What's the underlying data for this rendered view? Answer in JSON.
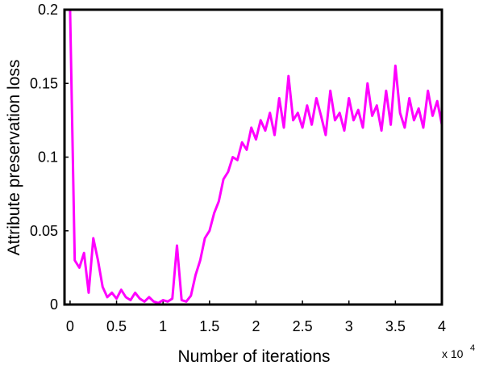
{
  "chart_data": {
    "type": "line",
    "x_label": "Number of iterations",
    "y_label": "Attribute preservation loss",
    "x_scale_label": "x 10",
    "x_scale_exponent": "4",
    "xlim": [
      -600,
      40000
    ],
    "ylim": [
      0,
      0.2
    ],
    "xticks": [
      {
        "value": 0,
        "label": "0"
      },
      {
        "value": 5000,
        "label": "0.5"
      },
      {
        "value": 10000,
        "label": "1"
      },
      {
        "value": 15000,
        "label": "1.5"
      },
      {
        "value": 20000,
        "label": "2"
      },
      {
        "value": 25000,
        "label": "2.5"
      },
      {
        "value": 30000,
        "label": "3"
      },
      {
        "value": 35000,
        "label": "3.5"
      },
      {
        "value": 40000,
        "label": "4"
      }
    ],
    "yticks": [
      0,
      0.05,
      0.1,
      0.15,
      0.2
    ],
    "x": [
      0,
      500,
      1000,
      1500,
      2000,
      2500,
      3000,
      3500,
      4000,
      4500,
      5000,
      5500,
      6000,
      6500,
      7000,
      7500,
      8000,
      8500,
      9000,
      9500,
      10000,
      10500,
      11000,
      11500,
      12000,
      12500,
      13000,
      13500,
      14000,
      14500,
      15000,
      15500,
      16000,
      16500,
      17000,
      17500,
      18000,
      18500,
      19000,
      19500,
      20000,
      20500,
      21000,
      21500,
      22000,
      22500,
      23000,
      23500,
      24000,
      24500,
      25000,
      25500,
      26000,
      26500,
      27000,
      27500,
      28000,
      28500,
      29000,
      29500,
      30000,
      30500,
      31000,
      31500,
      32000,
      32500,
      33000,
      33500,
      34000,
      34500,
      35000,
      35500,
      36000,
      36500,
      37000,
      37500,
      38000,
      38500,
      39000,
      39500,
      40000
    ],
    "series": [
      {
        "color": "#ff00ff",
        "values": [
          0.2,
          0.03,
          0.025,
          0.035,
          0.008,
          0.045,
          0.03,
          0.012,
          0.005,
          0.008,
          0.004,
          0.01,
          0.005,
          0.003,
          0.008,
          0.004,
          0.002,
          0.005,
          0.002,
          0.001,
          0.003,
          0.002,
          0.004,
          0.04,
          0.003,
          0.002,
          0.006,
          0.02,
          0.03,
          0.045,
          0.05,
          0.062,
          0.07,
          0.085,
          0.09,
          0.1,
          0.098,
          0.11,
          0.105,
          0.12,
          0.112,
          0.125,
          0.118,
          0.13,
          0.115,
          0.14,
          0.12,
          0.155,
          0.125,
          0.13,
          0.12,
          0.135,
          0.122,
          0.14,
          0.128,
          0.115,
          0.145,
          0.125,
          0.13,
          0.118,
          0.14,
          0.125,
          0.132,
          0.12,
          0.15,
          0.128,
          0.135,
          0.118,
          0.145,
          0.122,
          0.162,
          0.13,
          0.12,
          0.14,
          0.125,
          0.133,
          0.12,
          0.145,
          0.128,
          0.138,
          0.122
        ]
      }
    ]
  }
}
